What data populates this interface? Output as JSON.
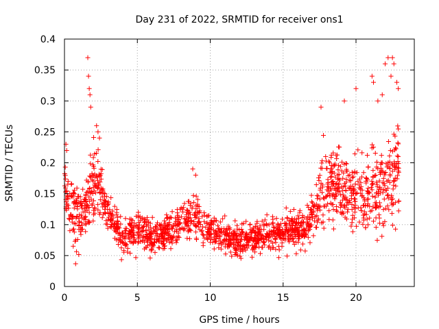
{
  "chart_data": {
    "type": "scatter",
    "title": "Day 231 of 2022, SRMTID for receiver ons1",
    "xlabel": "GPS time / hours",
    "ylabel": "SRMTID / TECUs",
    "xlim": [
      0,
      24
    ],
    "ylim": [
      0,
      0.4
    ],
    "x_ticks": [
      0,
      5,
      10,
      15,
      20
    ],
    "x_tick_labels": [
      "0",
      "5",
      "10",
      "15",
      "20"
    ],
    "y_ticks": [
      0,
      0.05,
      0.1,
      0.15,
      0.2,
      0.25,
      0.3,
      0.35,
      0.4
    ],
    "y_tick_labels": [
      "0",
      "0.05",
      "0.1",
      "0.15",
      "0.2",
      "0.25",
      "0.3",
      "0.35",
      "0.4"
    ],
    "grid": true,
    "marker": "+",
    "color": "#ff0000",
    "profile": {
      "x": [
        0.0,
        0.3,
        0.8,
        1.4,
        1.8,
        2.2,
        2.6,
        3.0,
        3.5,
        4.0,
        5.0,
        6.0,
        7.0,
        8.0,
        8.8,
        9.5,
        10.5,
        11.5,
        12.5,
        13.5,
        14.5,
        15.5,
        16.5,
        17.2,
        17.8,
        18.5,
        19.5,
        20.5,
        21.5,
        22.3,
        22.9
      ],
      "y": [
        0.17,
        0.13,
        0.11,
        0.12,
        0.15,
        0.17,
        0.15,
        0.12,
        0.1,
        0.08,
        0.095,
        0.075,
        0.085,
        0.1,
        0.115,
        0.095,
        0.085,
        0.075,
        0.075,
        0.08,
        0.085,
        0.09,
        0.095,
        0.12,
        0.16,
        0.17,
        0.15,
        0.14,
        0.15,
        0.17,
        0.18
      ]
    },
    "spread": {
      "x": [
        0.0,
        1.5,
        2.0,
        3.0,
        4.0,
        6.0,
        8.0,
        9.0,
        10.0,
        12.0,
        14.0,
        16.0,
        17.0,
        18.0,
        19.5,
        21.0,
        22.0,
        22.9
      ],
      "y": [
        0.05,
        0.04,
        0.07,
        0.035,
        0.03,
        0.025,
        0.03,
        0.035,
        0.025,
        0.025,
        0.025,
        0.03,
        0.035,
        0.06,
        0.055,
        0.06,
        0.07,
        0.075
      ]
    },
    "outliers": {
      "x": [
        1.6,
        1.65,
        1.7,
        1.75,
        1.8,
        2.2,
        2.3,
        2.4,
        0.1,
        0.15,
        8.8,
        9.0,
        17.6,
        19.2,
        20.0,
        21.1,
        21.2,
        22.0,
        22.2,
        22.4,
        22.5,
        22.6,
        22.8,
        22.9,
        21.5,
        21.8
      ],
      "y": [
        0.37,
        0.34,
        0.32,
        0.31,
        0.29,
        0.26,
        0.25,
        0.24,
        0.23,
        0.22,
        0.19,
        0.18,
        0.29,
        0.3,
        0.32,
        0.34,
        0.33,
        0.36,
        0.37,
        0.34,
        0.37,
        0.36,
        0.33,
        0.32,
        0.3,
        0.31
      ]
    }
  }
}
